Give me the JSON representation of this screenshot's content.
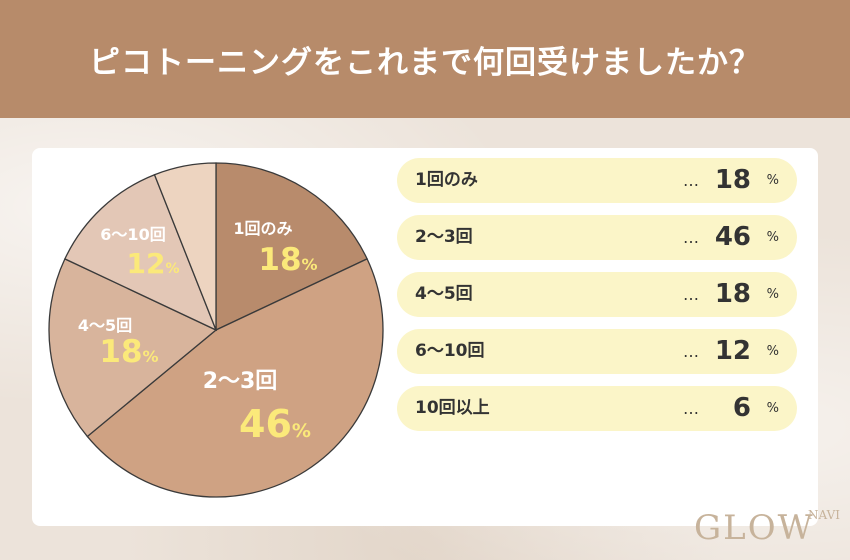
{
  "title": "ピコトーニングをこれまで何回受けましたか？",
  "logo": "GLOW",
  "logo_sub": "NAVI",
  "colors": {
    "header_bg": "#b78b6a",
    "pct_text": "#fbe97a",
    "slices": [
      "#b88b6c",
      "#cfa283",
      "#d8b49c",
      "#e3c7b6",
      "#edd4c0"
    ]
  },
  "legend_unit": "%",
  "legend_dots": "…",
  "chart_data": {
    "type": "pie",
    "slices": [
      {
        "label": "1回のみ",
        "value": 18,
        "pct_text": "18"
      },
      {
        "label": "2〜3回",
        "value": 46,
        "pct_text": "46"
      },
      {
        "label": "4〜5回",
        "value": 18,
        "pct_text": "18"
      },
      {
        "label": "6〜10回",
        "value": 12,
        "pct_text": "12"
      },
      {
        "label": "10回以上",
        "value": 6,
        "pct_text": ""
      }
    ],
    "pct_symbol": "%"
  },
  "legend": [
    {
      "label": "1回のみ",
      "value": "18"
    },
    {
      "label": "2〜3回",
      "value": "46"
    },
    {
      "label": "4〜5回",
      "value": "18"
    },
    {
      "label": "6〜10回",
      "value": "12"
    },
    {
      "label": "10回以上",
      "value": "6"
    }
  ]
}
